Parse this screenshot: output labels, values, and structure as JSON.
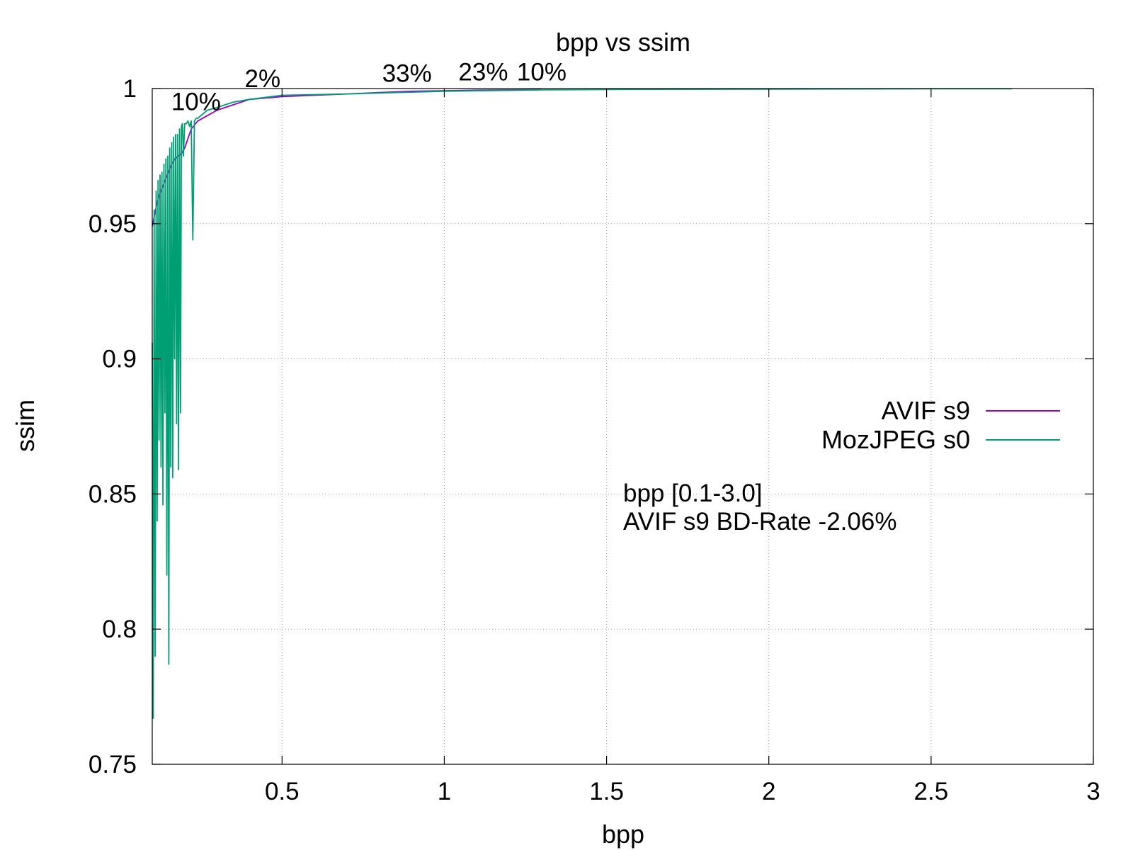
{
  "chart_data": {
    "type": "line",
    "title": "bpp vs ssim",
    "xlabel": "bpp",
    "ylabel": "ssim",
    "xlim": [
      0.1,
      3.0
    ],
    "ylim": [
      0.75,
      1.0
    ],
    "x_ticks": [
      0.5,
      1,
      1.5,
      2,
      2.5,
      3
    ],
    "x_tick_labels": [
      "0.5",
      "1",
      "1.5",
      "2",
      "2.5",
      "3"
    ],
    "y_ticks": [
      0.75,
      0.8,
      0.85,
      0.9,
      0.95,
      1.0
    ],
    "y_tick_labels": [
      "0.75",
      "0.8",
      "0.85",
      "0.9",
      "0.95",
      "1"
    ],
    "grid": true,
    "legend_position": "right",
    "series": [
      {
        "name": "AVIF s9",
        "color": "#9400d3",
        "x": [
          0.1,
          0.11,
          0.12,
          0.13,
          0.14,
          0.15,
          0.16,
          0.17,
          0.18,
          0.19,
          0.2,
          0.22,
          0.24,
          0.27,
          0.3,
          0.35,
          0.4,
          0.45,
          0.5,
          0.6,
          0.7,
          0.8,
          0.9,
          1.0,
          1.1,
          1.2,
          1.3
        ],
        "y": [
          0.949,
          0.955,
          0.96,
          0.963,
          0.966,
          0.969,
          0.972,
          0.974,
          0.975,
          0.976,
          0.978,
          0.985,
          0.988,
          0.99,
          0.992,
          0.994,
          0.996,
          0.9965,
          0.997,
          0.9975,
          0.998,
          0.9985,
          0.999,
          0.9992,
          0.9994,
          0.9995,
          0.9996
        ]
      },
      {
        "name": "MozJPEG s0",
        "color": "#009e73",
        "x": [
          0.1,
          0.103,
          0.106,
          0.109,
          0.112,
          0.115,
          0.118,
          0.121,
          0.124,
          0.127,
          0.13,
          0.133,
          0.136,
          0.139,
          0.142,
          0.145,
          0.148,
          0.151,
          0.154,
          0.157,
          0.16,
          0.163,
          0.166,
          0.169,
          0.172,
          0.175,
          0.178,
          0.181,
          0.184,
          0.187,
          0.19,
          0.193,
          0.196,
          0.2,
          0.205,
          0.21,
          0.215,
          0.22,
          0.225,
          0.23,
          0.235,
          0.24,
          0.25,
          0.27,
          0.3,
          0.35,
          0.4,
          0.5,
          0.7,
          1.0,
          1.3,
          1.65,
          2.0,
          2.5,
          2.75
        ],
        "y": [
          0.906,
          0.767,
          0.955,
          0.79,
          0.962,
          0.84,
          0.966,
          0.87,
          0.968,
          0.86,
          0.969,
          0.846,
          0.972,
          0.88,
          0.974,
          0.82,
          0.975,
          0.787,
          0.978,
          0.86,
          0.98,
          0.856,
          0.982,
          0.9,
          0.983,
          0.876,
          0.983,
          0.859,
          0.985,
          0.88,
          0.986,
          0.987,
          0.975,
          0.987,
          0.987,
          0.988,
          0.986,
          0.988,
          0.944,
          0.988,
          0.989,
          0.989,
          0.99,
          0.992,
          0.993,
          0.995,
          0.996,
          0.9975,
          0.998,
          0.999,
          0.9995,
          0.9997,
          0.9998,
          0.9999,
          0.9999
        ]
      }
    ],
    "annotations": [
      {
        "text": "10%",
        "x": 0.235,
        "y": 0.992
      },
      {
        "text": "2%",
        "x": 0.44,
        "y": 1.0005
      },
      {
        "text": "33%",
        "x": 0.885,
        "y": 1.0025
      },
      {
        "text": "23%",
        "x": 1.12,
        "y": 1.003
      },
      {
        "text": "10%",
        "x": 1.3,
        "y": 1.003
      }
    ],
    "note_lines": [
      "bpp [0.1-3.0]",
      "AVIF s9 BD-Rate -2.06%"
    ],
    "note_color": "#00ee00"
  }
}
